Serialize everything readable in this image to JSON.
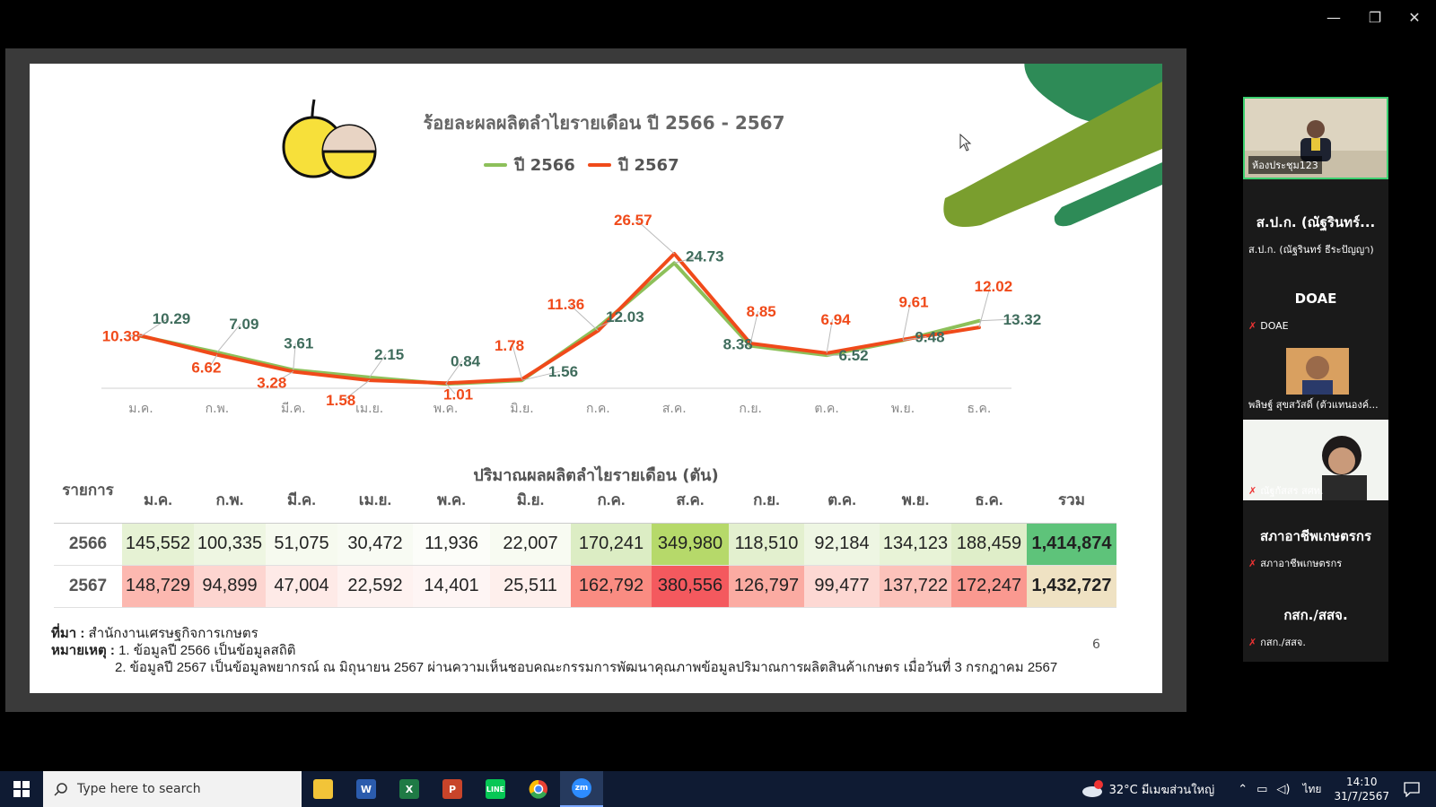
{
  "slide": {
    "chart_title": "ร้อยละผลผลิตลำไยรายเดือน ปี 2566 - 2567",
    "legend_2566": "ปี 2566",
    "legend_2567": "ปี 2567",
    "table_title": "ปริมาณผลผลิตลำไยรายเดือน (ตัน)",
    "table_items_header": "รายการ",
    "table_total_header": "รวม",
    "source_label": "ที่มา :",
    "source_text": "สำนักงานเศรษฐกิจการเกษตร",
    "note_label": "หมายเหตุ :",
    "note_1": "1. ข้อมูลปี 2566 เป็นข้อมูลสถิติ",
    "note_2": "2. ข้อมูลปี 2567 เป็นข้อมูลพยากรณ์ ณ มิถุนายน 2567 ผ่านความเห็นชอบคณะกรรมการพัฒนาคุณภาพข้อมูลปริมาณการผลิตสินค้าเกษตร เมื่อวันที่ 3 กรกฎาคม 2567",
    "page_number": "6",
    "colors": {
      "series_2566": "#8dc05a",
      "series_2567": "#f04a1a",
      "label_2566": "#3f6c5c",
      "label_2567": "#f04a1a"
    }
  },
  "chart_data": {
    "type": "line",
    "categories": [
      "ม.ค.",
      "ก.พ.",
      "มี.ค.",
      "เม.ย.",
      "พ.ค.",
      "มิ.ย.",
      "ก.ค.",
      "ส.ค.",
      "ก.ย.",
      "ต.ค.",
      "พ.ย.",
      "ธ.ค."
    ],
    "series": [
      {
        "name": "ปี 2566",
        "values": [
          10.29,
          7.09,
          3.61,
          2.15,
          0.84,
          1.56,
          12.03,
          24.73,
          8.38,
          6.52,
          9.48,
          13.32
        ],
        "labels": [
          "10.29",
          "7.09",
          "3.61",
          "2.15",
          "0.84",
          "1.56",
          "12.03",
          "24.73",
          "8.38",
          "6.52",
          "9.48",
          "13.32"
        ]
      },
      {
        "name": "ปี 2567",
        "values": [
          10.38,
          6.62,
          3.28,
          1.58,
          1.01,
          1.78,
          11.36,
          26.57,
          8.85,
          6.94,
          9.61,
          12.02
        ],
        "labels": [
          "10.38",
          "6.62",
          "3.28",
          "1.58",
          "1.01",
          "1.78",
          "11.36",
          "26.57",
          "8.85",
          "6.94",
          "9.61",
          "12.02"
        ]
      }
    ],
    "ylim": [
      0,
      28
    ],
    "grid": false,
    "legend": "top"
  },
  "table": {
    "months": [
      "ม.ค.",
      "ก.พ.",
      "มี.ค.",
      "เม.ย.",
      "พ.ค.",
      "มิ.ย.",
      "ก.ค.",
      "ส.ค.",
      "ก.ย.",
      "ต.ค.",
      "พ.ย.",
      "ธ.ค."
    ],
    "rows": [
      {
        "year": "2566",
        "values": [
          "145,552",
          "100,335",
          "51,075",
          "30,472",
          "11,936",
          "22,007",
          "170,241",
          "349,980",
          "118,510",
          "92,184",
          "134,123",
          "188,459"
        ],
        "total": "1,414,874",
        "colors": [
          "#e6f2d4",
          "#eef6e2",
          "#f6faef",
          "#f8fbf3",
          "#fcfdf9",
          "#f8fbf2",
          "#dcedc4",
          "#b6d96a",
          "#e3f0cf",
          "#eef6e3",
          "#e8f3d7",
          "#dfeec9"
        ],
        "total_color": "#5ec37a"
      },
      {
        "year": "2567",
        "values": [
          "148,729",
          "94,899",
          "47,004",
          "22,592",
          "14,401",
          "25,511",
          "162,792",
          "380,556",
          "126,797",
          "99,477",
          "137,722",
          "172,247"
        ],
        "total": "1,432,727",
        "colors": [
          "#fcb8b0",
          "#fdd5d0",
          "#feeae7",
          "#fef2f0",
          "#fef5f4",
          "#feefec",
          "#fa8c82",
          "#f4595e",
          "#fbaba2",
          "#fdd8d3",
          "#fcc2ba",
          "#fa9990"
        ],
        "total_color": "#efe2c3"
      }
    ]
  },
  "participants": [
    {
      "label": "ห้องประชุม123",
      "type": "video"
    },
    {
      "big": "ส.ป.ก. (ณัฐรินทร์...",
      "small": "ส.ป.ก. (ณัฐรินทร์ ธีระปัญญา)",
      "muted": false
    },
    {
      "big": "DOAE",
      "small": "DOAE",
      "muted": true
    },
    {
      "small": "พลิษฐ์ สุขสวัสดิ์ (ตัวแทนองค์...",
      "type": "photo"
    },
    {
      "small": "ณัฐกัสสร สศท.",
      "type": "video",
      "muted": true
    },
    {
      "big": "สภาอาชีพเกษตรกร",
      "small": "สภาอาชีพเกษตรกร",
      "muted": true
    },
    {
      "big": "กสก./สสจ.",
      "small": "กสก./สสจ.",
      "muted": true
    }
  ],
  "taskbar": {
    "search_placeholder": "Type here to search",
    "weather": "32°C มีเมฆส่วนใหญ่",
    "lang": "ไทย",
    "time": "14:10",
    "date": "31/7/2567",
    "apps": [
      "file-explorer",
      "word",
      "excel",
      "powerpoint",
      "line",
      "chrome",
      "zoom"
    ]
  }
}
